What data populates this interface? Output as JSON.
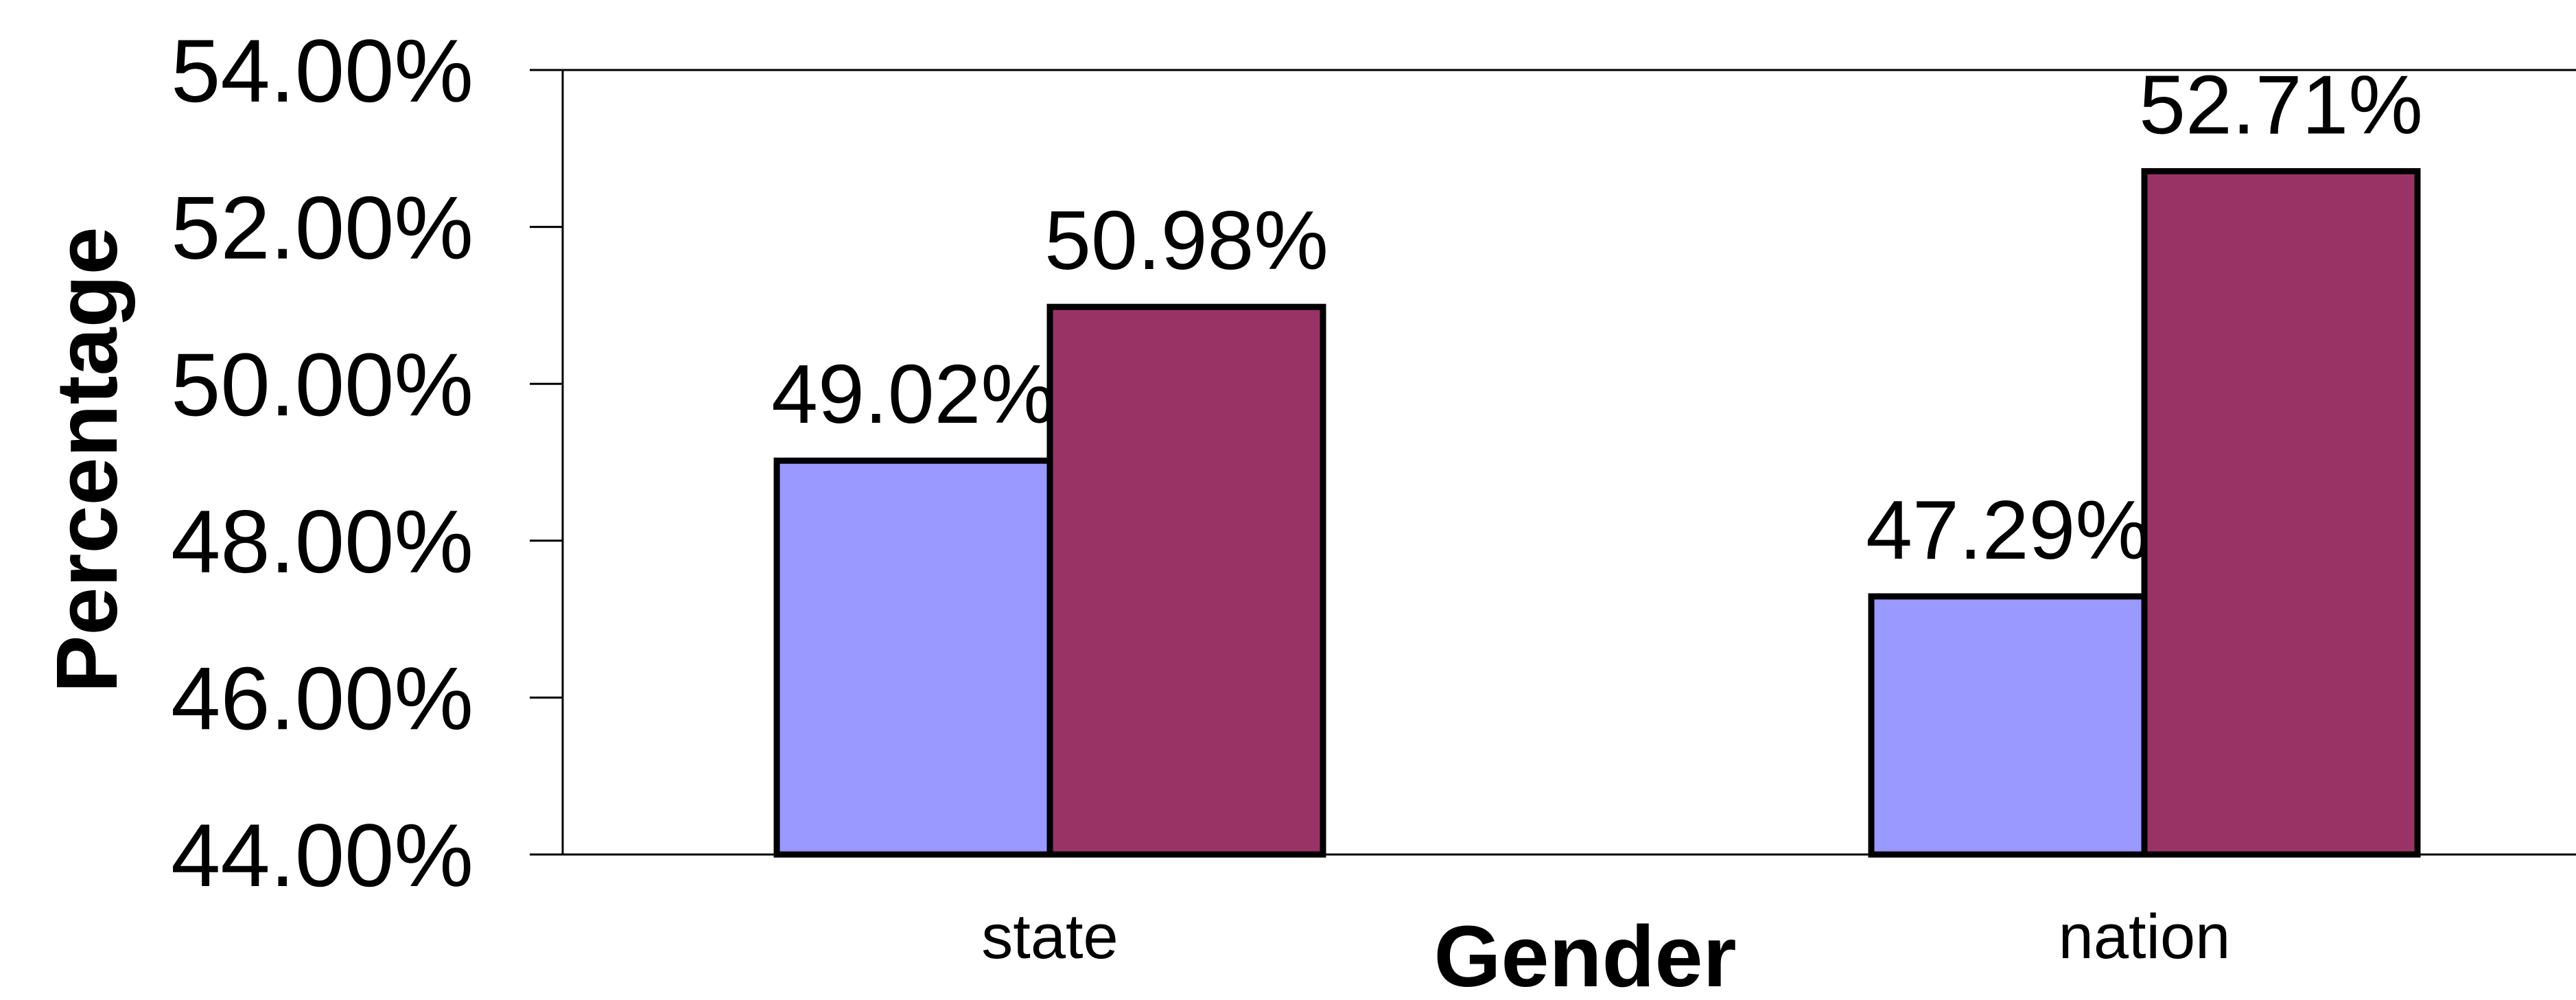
{
  "chart_data": {
    "type": "bar",
    "xlabel": "Gender",
    "ylabel": "Percentage",
    "categories": [
      "state",
      "nation"
    ],
    "series": [
      {
        "values": [
          49.02,
          47.29
        ],
        "labels": [
          "49.02%",
          "47.29%"
        ],
        "color": "#9999ff"
      },
      {
        "values": [
          50.98,
          52.71
        ],
        "labels": [
          "50.98%",
          "52.71%"
        ],
        "color": "#993366"
      }
    ],
    "ylim": [
      44,
      54
    ],
    "yticks": [
      44,
      46,
      48,
      50,
      52,
      54
    ],
    "ytick_labels": [
      "44.00%",
      "46.00%",
      "48.00%",
      "50.00%",
      "52.00%",
      "54.00%"
    ],
    "grid": false,
    "legend": "none"
  }
}
